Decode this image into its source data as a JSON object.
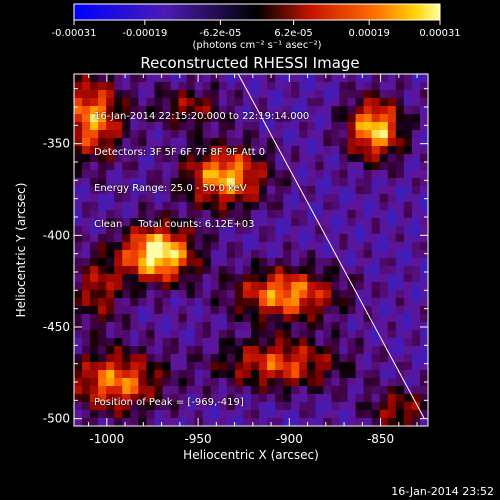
{
  "chart_data": {
    "type": "heatmap",
    "title": "Reconstructed RHESSI Image",
    "xlabel": "Heliocentric X (arcsec)",
    "ylabel": "Heliocentric Y (arcsec)",
    "xlim": [
      -1018,
      -824
    ],
    "ylim": [
      -504,
      -312
    ],
    "xticks": [
      -1000,
      -950,
      -900,
      -850
    ],
    "yticks": [
      -350,
      -400,
      -450,
      -500
    ],
    "colorbar": {
      "ticks": [
        "-0.00031",
        "-0.00019",
        "-6.2e-05",
        "6.2e-05",
        "0.00019",
        "0.00031"
      ],
      "range": [
        -0.00031,
        0.00031
      ],
      "units_label": "(photons cm⁻² s⁻¹ asec⁻²)"
    },
    "annotations": {
      "time": "16-Jan-2014 22:15:20.000 to 22:19:14.000",
      "detectors": "Detectors: 3F 5F 6F 7F 8F 9F Att 0",
      "energy": "Energy Range: 25.0 - 50.0 keV",
      "method": "Clean     Total counts: 6.12E+03",
      "peak": "Position of Peak = [-969,-419]"
    },
    "sources": [
      {
        "x": -972,
        "y": -410,
        "amp": 1.0,
        "sx": 14,
        "sy": 11
      },
      {
        "x": -935,
        "y": -368,
        "amp": 0.8,
        "sx": 16,
        "sy": 12
      },
      {
        "x": -902,
        "y": -432,
        "amp": 0.75,
        "sx": 20,
        "sy": 10
      },
      {
        "x": -853,
        "y": -342,
        "amp": 0.85,
        "sx": 11,
        "sy": 12
      },
      {
        "x": -1008,
        "y": -336,
        "amp": 0.75,
        "sx": 12,
        "sy": 16
      },
      {
        "x": -995,
        "y": -480,
        "amp": 0.7,
        "sx": 18,
        "sy": 12
      },
      {
        "x": -905,
        "y": -470,
        "amp": 0.6,
        "sx": 24,
        "sy": 10
      },
      {
        "x": -1005,
        "y": -430,
        "amp": 0.45,
        "sx": 10,
        "sy": 14
      },
      {
        "x": -840,
        "y": -495,
        "amp": 0.45,
        "sx": 12,
        "sy": 8
      },
      {
        "x": -955,
        "y": -330,
        "amp": 0.4,
        "sx": 14,
        "sy": 8
      }
    ],
    "limb_line": {
      "x": [
        -928,
        -826
      ],
      "y": [
        -312,
        -500
      ]
    },
    "footer_date": "16-Jan-2014 23:52"
  }
}
